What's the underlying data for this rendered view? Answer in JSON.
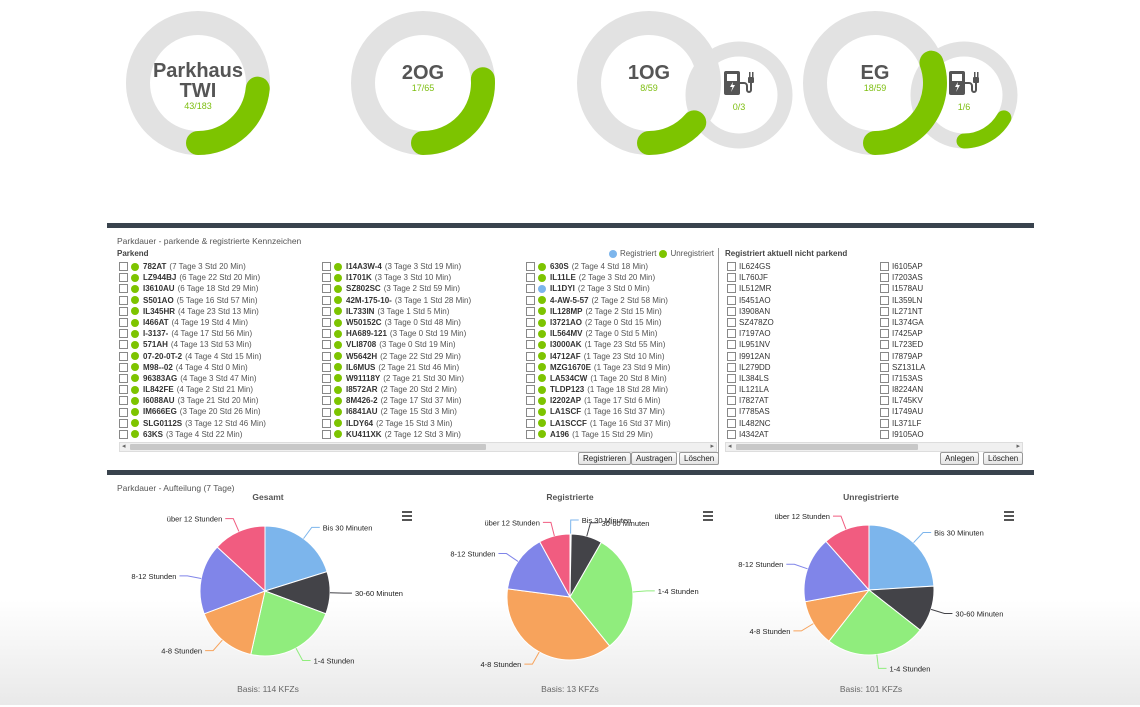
{
  "colors": {
    "accent_green": "#7dc400",
    "gauge_track": "#e2e2e2",
    "registered_blue": "#7cb5ec",
    "dark_bar": "#39434d"
  },
  "gauges": [
    {
      "label": "Parkhaus TWI",
      "count": "43/183",
      "fraction": 0.235
    },
    {
      "label": "2OG",
      "count": "17/65",
      "fraction": 0.26
    },
    {
      "label": "1OG",
      "count": "8/59",
      "fraction": 0.136,
      "charger": {
        "count": "0/3",
        "fraction": 0.0
      }
    },
    {
      "label": "EG",
      "count": "18/59",
      "fraction": 0.305,
      "charger": {
        "count": "1/6",
        "fraction": 0.167
      }
    }
  ],
  "parking_panel": {
    "title": "Parkdauer - parkende & registrierte Kennzeichen",
    "parking_header": "Parkend",
    "legend_registered": "Registriert",
    "legend_unregistered": "Unregistriert",
    "not_parking_header": "Registriert aktuell nicht parkend",
    "columns": [
      [
        {
          "plate": "782AT",
          "dur": "(7 Tage 3 Std 20 Min)",
          "reg": false
        },
        {
          "plate": "LZ944BJ",
          "dur": "(6 Tage 22 Std 20 Min)",
          "reg": false
        },
        {
          "plate": "I3610AU",
          "dur": "(6 Tage 18 Std 29 Min)",
          "reg": false
        },
        {
          "plate": "S501AO",
          "dur": "(5 Tage 16 Std 57 Min)",
          "reg": false
        },
        {
          "plate": "IL345HR",
          "dur": "(4 Tage 23 Std 13 Min)",
          "reg": false
        },
        {
          "plate": "I466AT",
          "dur": "(4 Tage 19 Std 4 Min)",
          "reg": false
        },
        {
          "plate": "I-3137-",
          "dur": "(4 Tage 17 Std 56 Min)",
          "reg": false
        },
        {
          "plate": "571AH",
          "dur": "(4 Tage 13 Std 53 Min)",
          "reg": false
        },
        {
          "plate": "07-20-0T-2",
          "dur": "(4 Tage 4 Std 15 Min)",
          "reg": false
        },
        {
          "plate": "M98--02",
          "dur": "(4 Tage 4 Std 0 Min)",
          "reg": false
        },
        {
          "plate": "96383AG",
          "dur": "(4 Tage 3 Std 47 Min)",
          "reg": false
        },
        {
          "plate": "IL842FE",
          "dur": "(4 Tage 2 Std 21 Min)",
          "reg": false
        },
        {
          "plate": "I6088AU",
          "dur": "(3 Tage 21 Std 20 Min)",
          "reg": false
        },
        {
          "plate": "IM666EG",
          "dur": "(3 Tage 20 Std 26 Min)",
          "reg": false
        },
        {
          "plate": "SLG0112S",
          "dur": "(3 Tage 12 Std 46 Min)",
          "reg": false
        },
        {
          "plate": "63KS",
          "dur": "(3 Tage 4 Std 22 Min)",
          "reg": false
        }
      ],
      [
        {
          "plate": "I14A3W-4",
          "dur": "(3 Tage 3 Std 19 Min)",
          "reg": false
        },
        {
          "plate": "I1701K",
          "dur": "(3 Tage 3 Std 10 Min)",
          "reg": false
        },
        {
          "plate": "SZ802SC",
          "dur": "(3 Tage 2 Std 59 Min)",
          "reg": false
        },
        {
          "plate": "42M-175-10-",
          "dur": "(3 Tage 1 Std 28 Min)",
          "reg": false
        },
        {
          "plate": "IL733IN",
          "dur": "(3 Tage 1 Std 5 Min)",
          "reg": false
        },
        {
          "plate": "W50152C",
          "dur": "(3 Tage 0 Std 48 Min)",
          "reg": false
        },
        {
          "plate": "HA689-121",
          "dur": "(3 Tage 0 Std 19 Min)",
          "reg": false
        },
        {
          "plate": "VLI8708",
          "dur": "(3 Tage 0 Std 19 Min)",
          "reg": false
        },
        {
          "plate": "W5642H",
          "dur": "(2 Tage 22 Std 29 Min)",
          "reg": false
        },
        {
          "plate": "IL6MUS",
          "dur": "(2 Tage 21 Std 46 Min)",
          "reg": false
        },
        {
          "plate": "W91118Y",
          "dur": "(2 Tage 21 Std 30 Min)",
          "reg": false
        },
        {
          "plate": "I8572AR",
          "dur": "(2 Tage 20 Std 2 Min)",
          "reg": false
        },
        {
          "plate": "8M426-2",
          "dur": "(2 Tage 17 Std 37 Min)",
          "reg": false
        },
        {
          "plate": "I6841AU",
          "dur": "(2 Tage 15 Std 3 Min)",
          "reg": false
        },
        {
          "plate": "ILDY64",
          "dur": "(2 Tage 15 Std 3 Min)",
          "reg": false
        },
        {
          "plate": "KU411XK",
          "dur": "(2 Tage 12 Std 3 Min)",
          "reg": false
        }
      ],
      [
        {
          "plate": "630S",
          "dur": "(2 Tage 4 Std 18 Min)",
          "reg": false
        },
        {
          "plate": "IL11LE",
          "dur": "(2 Tage 3 Std 20 Min)",
          "reg": false
        },
        {
          "plate": "IL1DYI",
          "dur": "(2 Tage 3 Std 0 Min)",
          "reg": true
        },
        {
          "plate": "4-AW-5-57",
          "dur": "(2 Tage 2 Std 58 Min)",
          "reg": false
        },
        {
          "plate": "IL128MP",
          "dur": "(2 Tage 2 Std 15 Min)",
          "reg": false
        },
        {
          "plate": "I3721AO",
          "dur": "(2 Tage 0 Std 15 Min)",
          "reg": false
        },
        {
          "plate": "IL564MV",
          "dur": "(2 Tage 0 Std 5 Min)",
          "reg": false
        },
        {
          "plate": "I3000AK",
          "dur": "(1 Tage 23 Std 55 Min)",
          "reg": false
        },
        {
          "plate": "I4712AF",
          "dur": "(1 Tage 23 Std 10 Min)",
          "reg": false
        },
        {
          "plate": "MZG1670E",
          "dur": "(1 Tage 23 Std 9 Min)",
          "reg": false
        },
        {
          "plate": "LA534CW",
          "dur": "(1 Tage 20 Std 8 Min)",
          "reg": false
        },
        {
          "plate": "TLDP123",
          "dur": "(1 Tage 18 Std 28 Min)",
          "reg": false
        },
        {
          "plate": "I2202AP",
          "dur": "(1 Tage 17 Std 6 Min)",
          "reg": false
        },
        {
          "plate": "LA1SCF",
          "dur": "(1 Tage 16 Std 37 Min)",
          "reg": false
        },
        {
          "plate": "LA1SCCF",
          "dur": "(1 Tage 16 Std 37 Min)",
          "reg": false
        },
        {
          "plate": "A196",
          "dur": "(1 Tage 15 Std 29 Min)",
          "reg": false
        }
      ]
    ],
    "not_parking": [
      [
        "IL624GS",
        "IL760JF",
        "IL512MR",
        "I5451AO",
        "I3908AN",
        "SZ478ZO",
        "I7197AO",
        "IL951NV",
        "I9912AN",
        "IL279DD",
        "IL384LS",
        "IL121LA",
        "I7827AT",
        "I7785AS",
        "IL482NC",
        "I4342AT"
      ],
      [
        "I6105AP",
        "I7203AS",
        "I1578AU",
        "IL359LN",
        "IL271NT",
        "IL374GA",
        "I7425AP",
        "IL723ED",
        "I7879AP",
        "SZ131LA",
        "I7153AS",
        "I8224AN",
        "IL745KV",
        "I1749AU",
        "IL371LF",
        "I9105AO"
      ]
    ],
    "buttons": {
      "register": "Registrieren",
      "checkout": "Austragen",
      "delete": "Löschen",
      "create": "Anlegen",
      "delete2": "Löschen"
    }
  },
  "distribution_panel": {
    "title": "Parkdauer - Aufteilung (7 Tage)"
  },
  "chart_data": [
    {
      "type": "pie",
      "title": "Gesamt",
      "basis": "Basis: 114 KFZs",
      "categories": [
        "Bis 30 Minuten",
        "30-60 Minuten",
        "1-4 Stunden",
        "4-8 Stunden",
        "8-12 Stunden",
        "über 12 Stunden"
      ],
      "values": [
        23,
        12,
        26,
        18,
        20,
        15
      ],
      "colors": [
        "#7cb5ec",
        "#434348",
        "#90ed7d",
        "#f7a35c",
        "#8085e9",
        "#f15c80"
      ]
    },
    {
      "type": "pie",
      "title": "Registrierte",
      "basis": "Basis: 13 KFZs",
      "categories": [
        "Bis 30 Minuten",
        "30-60 Minuten",
        "1-4 Stunden",
        "4-8 Stunden",
        "8-12 Stunden",
        "über 12 Stunden"
      ],
      "values": [
        0.3,
        8,
        31,
        38,
        15,
        8
      ],
      "colors": [
        "#7cb5ec",
        "#434348",
        "#90ed7d",
        "#f7a35c",
        "#8085e9",
        "#f15c80"
      ]
    },
    {
      "type": "pie",
      "title": "Unregistrierte",
      "basis": "Basis: 101 KFZs",
      "categories": [
        "Bis 30 Minuten",
        "30-60 Minuten",
        "1-4 Stunden",
        "4-8 Stunden",
        "8-12 Stunden",
        "über 12 Stunden"
      ],
      "values": [
        25,
        12,
        26,
        12,
        17,
        12
      ],
      "colors": [
        "#7cb5ec",
        "#434348",
        "#90ed7d",
        "#f7a35c",
        "#8085e9",
        "#f15c80"
      ]
    }
  ]
}
